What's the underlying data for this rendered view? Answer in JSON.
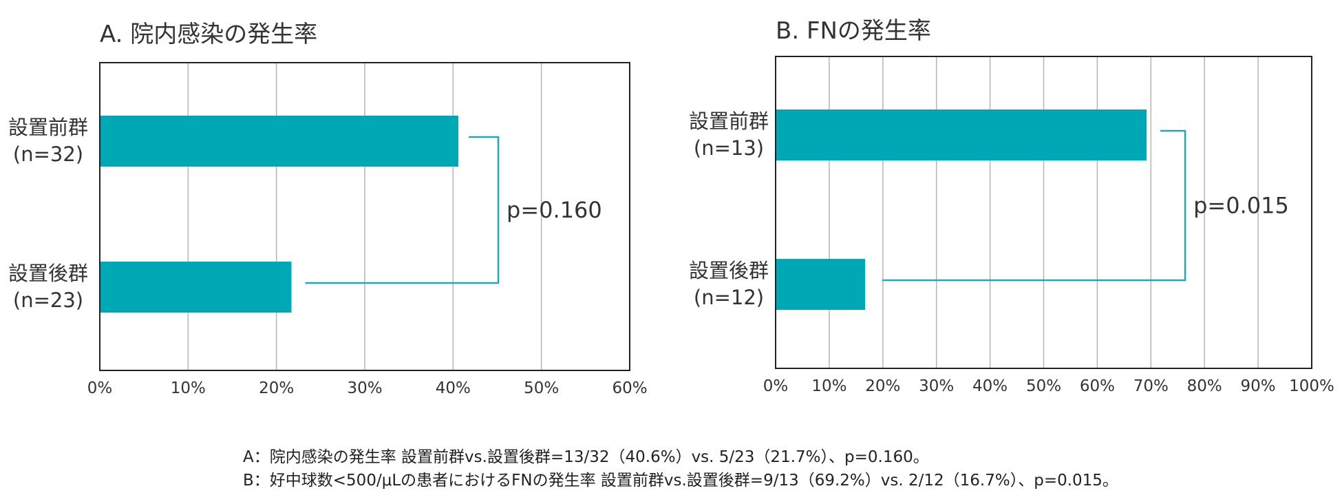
{
  "colors": {
    "bar": "#00a8b5",
    "bracket": "#1aaab7",
    "grid": "#b4b4b4",
    "frame": "#222222",
    "text": "#333333"
  },
  "chart_data": [
    {
      "type": "bar",
      "orientation": "horizontal",
      "title": "A. 院内感染の発生率",
      "categories": [
        {
          "label": "設置前群",
          "n": "(n=32)"
        },
        {
          "label": "設置後群",
          "n": "(n=23)"
        }
      ],
      "values": [
        40.6,
        21.7
      ],
      "unit": "%",
      "xlim": [
        0,
        60
      ],
      "xticks": [
        0,
        10,
        20,
        30,
        40,
        50,
        60
      ],
      "xtick_labels": [
        "0%",
        "10%",
        "20%",
        "30%",
        "40%",
        "50%",
        "60%"
      ],
      "grid": true,
      "annotation": "p=0.160"
    },
    {
      "type": "bar",
      "orientation": "horizontal",
      "title": "B. FNの発生率",
      "categories": [
        {
          "label": "設置前群",
          "n": "(n=13)"
        },
        {
          "label": "設置後群",
          "n": "(n=12)"
        }
      ],
      "values": [
        69.2,
        16.7
      ],
      "unit": "%",
      "xlim": [
        0,
        100
      ],
      "xticks": [
        0,
        10,
        20,
        30,
        40,
        50,
        60,
        70,
        80,
        90,
        100
      ],
      "xtick_labels": [
        "0%",
        "10%",
        "20%",
        "30%",
        "40%",
        "50%",
        "60%",
        "70%",
        "80%",
        "90%",
        "100%"
      ],
      "grid": true,
      "annotation": "p=0.015"
    }
  ],
  "captions": [
    "A：院内感染の発生率 設置前群vs.設置後群=13/32（40.6%）vs. 5/23（21.7%）、p=0.160。",
    "B：好中球数<500/μLの患者におけるFNの発生率 設置前群vs.設置後群=9/13（69.2%）vs. 2/12（16.7%）、p=0.015。"
  ]
}
